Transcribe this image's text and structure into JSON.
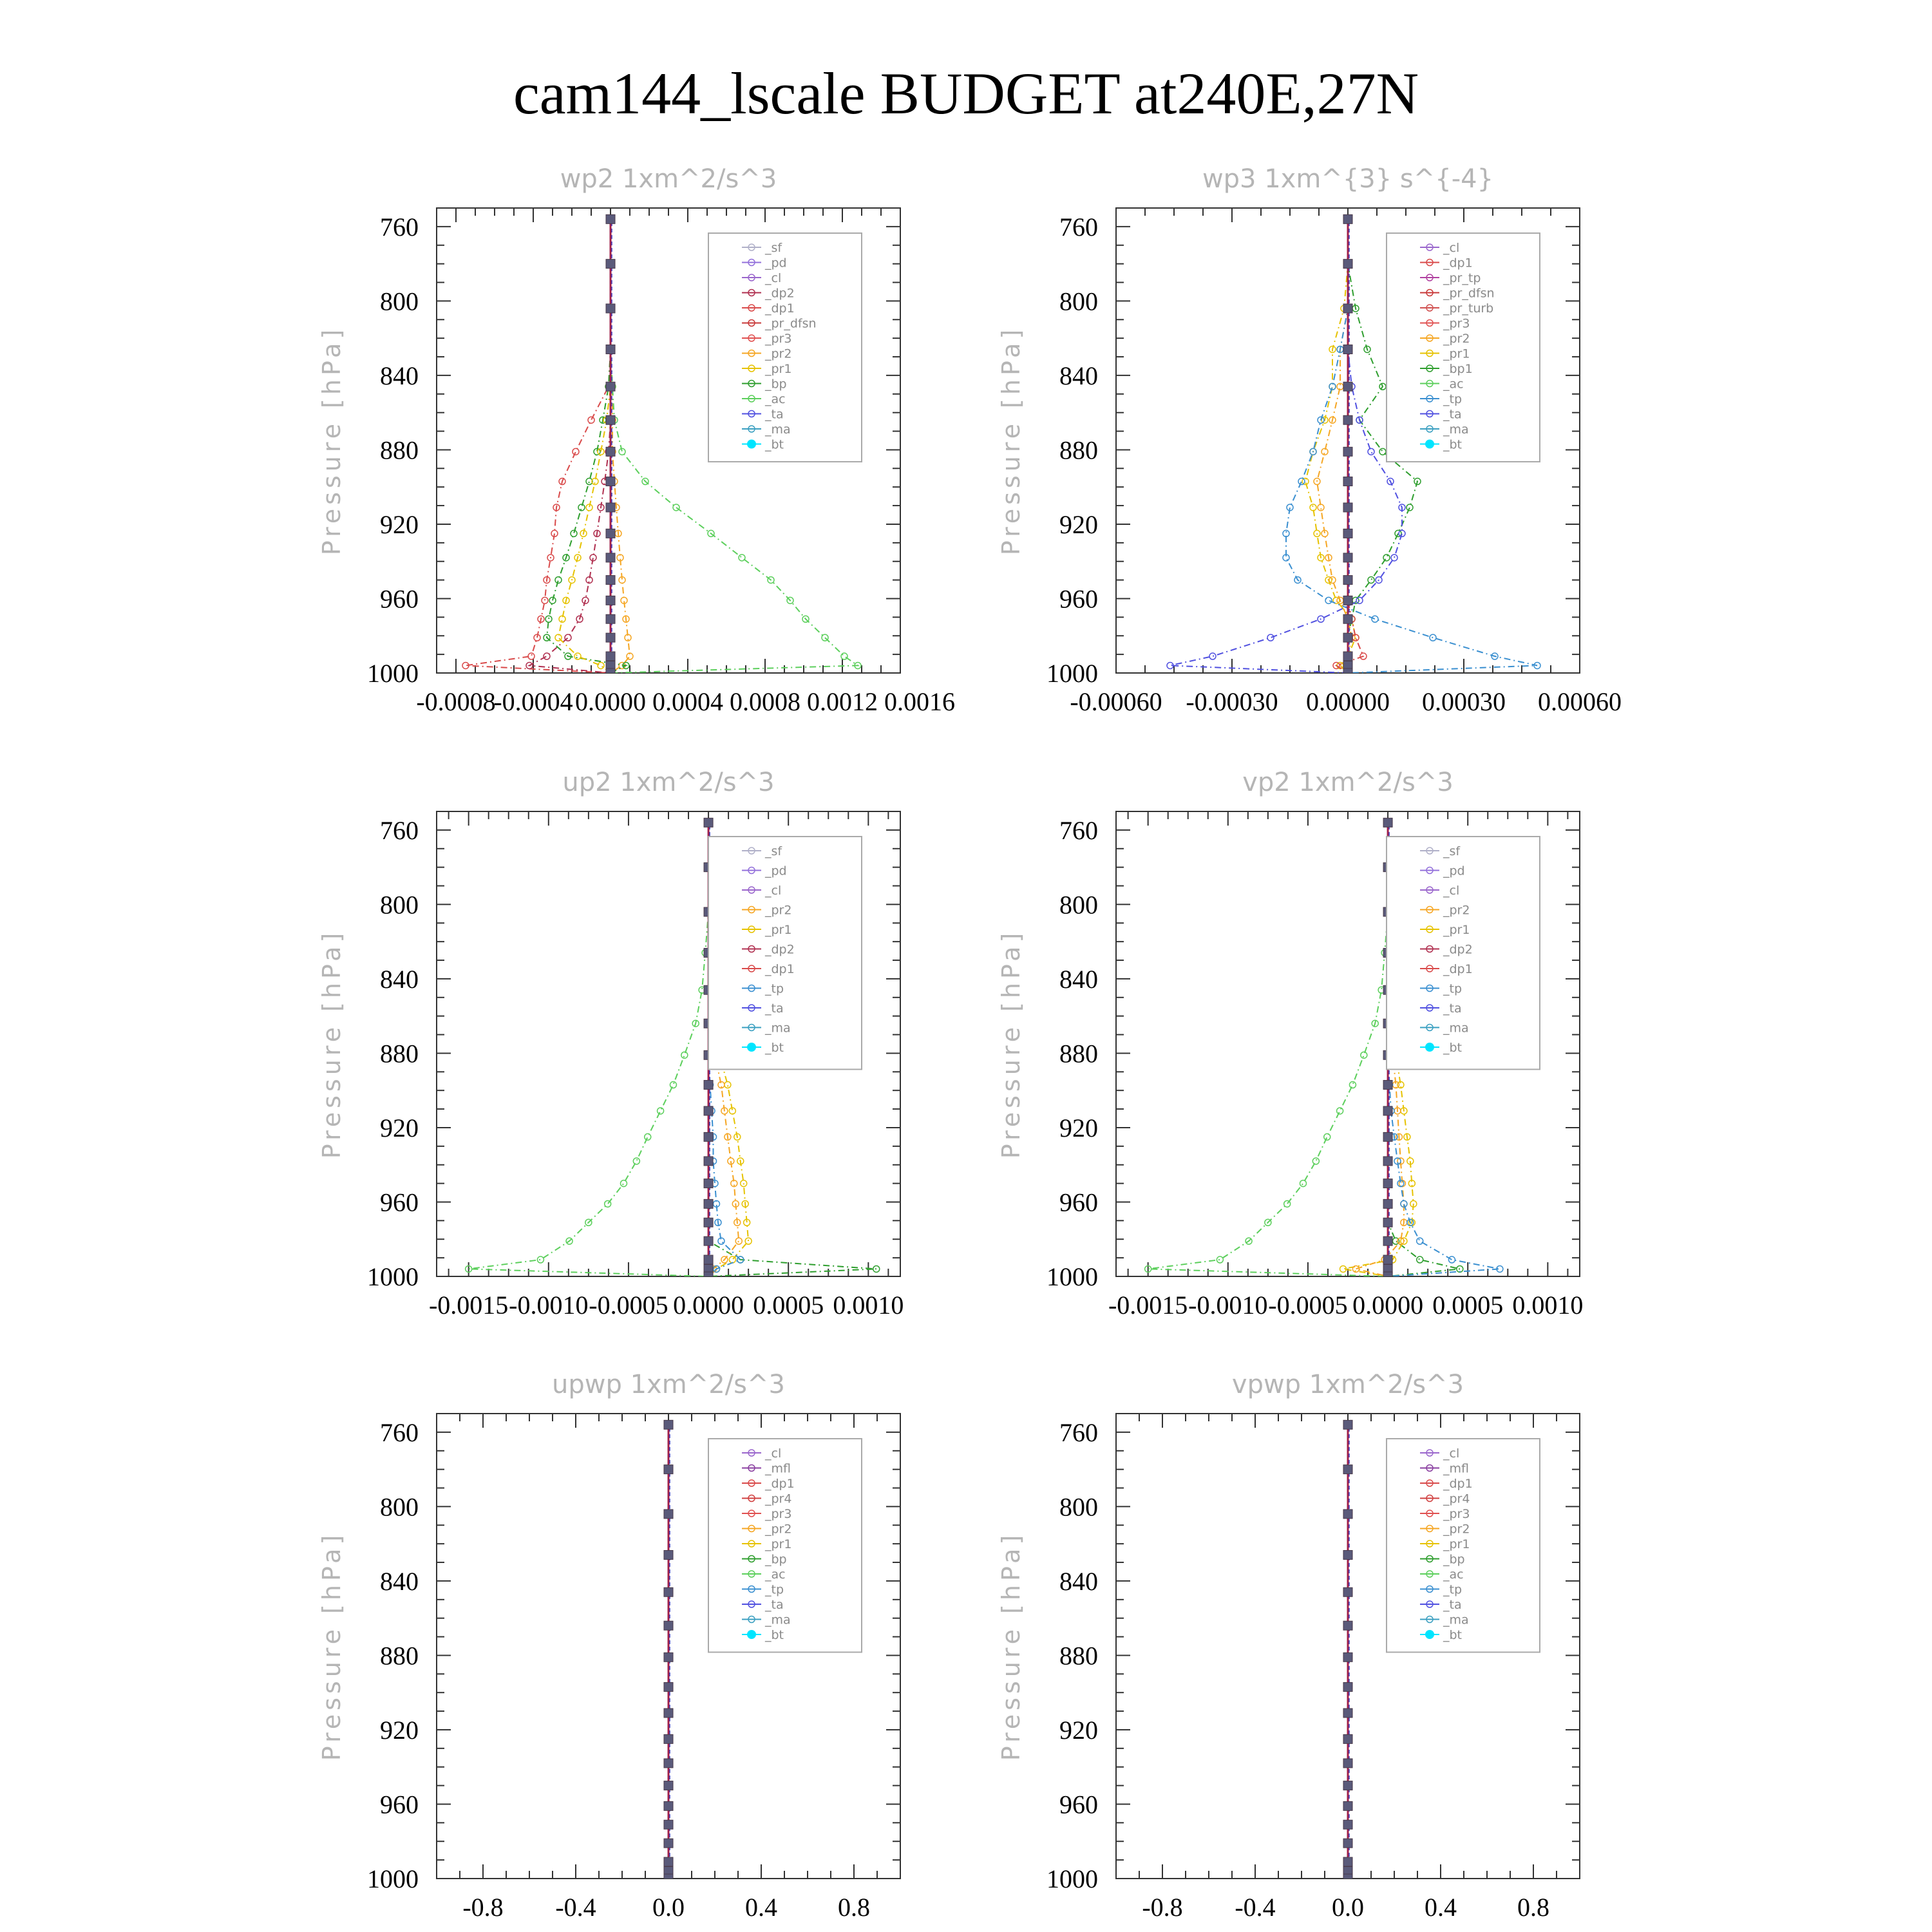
{
  "figure": {
    "title": "cam144_lscale  BUDGET at240E,27N"
  },
  "chart_data": [
    {
      "type": "line",
      "title": "wp2   1xm^2/s^3",
      "ylabel": "Pressure  [hPa]",
      "ylim": [
        1000,
        750
      ],
      "yticks": [
        760,
        800,
        840,
        880,
        920,
        960,
        1000
      ],
      "xlim": [
        -0.0009,
        0.0015
      ],
      "xticks": [
        -0.0008,
        -0.0004,
        0.0,
        0.0004,
        0.0008,
        0.0012,
        0.0016
      ],
      "xticklabels": [
        "-0.0008",
        "-0.0004",
        "0.0000",
        "0.0004",
        "0.0008",
        "0.0012",
        "0.0016"
      ],
      "levels": [
        756,
        780,
        804,
        826,
        846,
        864,
        881,
        897,
        911,
        925,
        938,
        950,
        961,
        971,
        981,
        991,
        996,
        1000
      ],
      "legend": [
        "_sf",
        "_pd",
        "_cl",
        "_dp2",
        "_dp1",
        "_pr_dfsn",
        "_pr3",
        "_pr2",
        "_pr1",
        "_bp",
        "_ac",
        "_ta",
        "_ma",
        "_bt"
      ],
      "series": [
        {
          "name": "_dp1",
          "color": "#d94a4a",
          "values": [
            0,
            0,
            0,
            0,
            -1e-05,
            -0.0001,
            -0.00018,
            -0.00025,
            -0.00028,
            -0.00029,
            -0.00031,
            -0.00033,
            -0.00034,
            -0.00036,
            -0.00038,
            -0.00041,
            -0.00075,
            0
          ]
        },
        {
          "name": "_dp2",
          "color": "#b03050",
          "values": [
            0,
            0,
            0,
            0,
            0,
            0,
            -1e-05,
            -3e-05,
            -5e-05,
            -7e-05,
            -9e-05,
            -0.00011,
            -0.00013,
            -0.00016,
            -0.00022,
            -0.00033,
            -0.00042,
            0
          ]
        },
        {
          "name": "_pr3",
          "color": "#f5a623",
          "values": [
            0,
            0,
            0,
            0,
            1e-05,
            1e-05,
            1e-05,
            2e-05,
            3e-05,
            4e-05,
            5e-05,
            6e-05,
            7e-05,
            8e-05,
            9e-05,
            0.0001,
            6e-05,
            0
          ]
        },
        {
          "name": "_pr1",
          "color": "#2e9e2e",
          "values": [
            0,
            0,
            0,
            0,
            -1e-05,
            -4e-05,
            -7e-05,
            -0.00011,
            -0.00015,
            -0.00019,
            -0.00023,
            -0.00027,
            -0.0003,
            -0.00032,
            -0.00033,
            -0.00022,
            8e-05,
            0
          ]
        },
        {
          "name": "_pr2",
          "color": "#e6c200",
          "values": [
            0,
            0,
            0,
            0,
            0,
            -2e-05,
            -5e-05,
            -8e-05,
            -0.00011,
            -0.00014,
            -0.00017,
            -0.0002,
            -0.00023,
            -0.00025,
            -0.00027,
            -0.00017,
            -5e-05,
            0
          ]
        },
        {
          "name": "_bp",
          "color": "#5ccf5c",
          "values": [
            0,
            0,
            0,
            0,
            1e-05,
            2e-05,
            6e-05,
            0.00018,
            0.00034,
            0.00052,
            0.00068,
            0.00083,
            0.00093,
            0.00101,
            0.00111,
            0.00121,
            0.00128,
            0
          ]
        },
        {
          "name": "_ta",
          "color": "#5050e0",
          "values": [
            0,
            0,
            0,
            0,
            0,
            0,
            0,
            0,
            0,
            0,
            0,
            0,
            0,
            0,
            0,
            0,
            0,
            0
          ]
        }
      ]
    },
    {
      "type": "line",
      "title": "wp3   1xm^{3} s^{-4}",
      "ylabel": "Pressure  [hPa]",
      "ylim": [
        1000,
        750
      ],
      "yticks": [
        760,
        800,
        840,
        880,
        920,
        960,
        1000
      ],
      "xlim": [
        -0.0006,
        0.0006
      ],
      "xticks": [
        -0.0006,
        -0.0003,
        0.0,
        0.0003,
        0.0006
      ],
      "xticklabels": [
        "-0.00060",
        "-0.00030",
        "0.00000",
        "0.00030",
        "0.00060"
      ],
      "levels": [
        756,
        780,
        804,
        826,
        846,
        864,
        881,
        897,
        911,
        925,
        938,
        950,
        961,
        971,
        981,
        991,
        996,
        1000
      ],
      "legend": [
        "_cl",
        "_dp1",
        "_pr_tp",
        "_pr_dfsn",
        "_pr_turb",
        "_pr3",
        "_pr2",
        "_pr1",
        "_bp1",
        "_ac",
        "_tp",
        "_ta",
        "_ma",
        "_bt"
      ],
      "series": [
        {
          "name": "_pr1",
          "color": "#e6c200",
          "values": [
            0,
            0,
            -1e-05,
            -4e-05,
            -4e-05,
            -6e-05,
            -9e-05,
            -0.00011,
            -9e-05,
            -8e-05,
            -7e-05,
            -5e-05,
            -3e-05,
            1e-05,
            2e-05,
            0,
            -2e-05,
            0
          ]
        },
        {
          "name": "_pr2",
          "color": "#f5a623",
          "values": [
            0,
            0,
            0,
            -2e-05,
            -2e-05,
            -4e-05,
            -6e-05,
            -8e-05,
            -7e-05,
            -6e-05,
            -5e-05,
            -4e-05,
            -2e-05,
            0,
            1e-05,
            0,
            -1e-05,
            0
          ]
        },
        {
          "name": "_bp1",
          "color": "#2e9e2e",
          "values": [
            0,
            0,
            2e-05,
            5e-05,
            9e-05,
            3e-05,
            9e-05,
            0.00018,
            0.00016,
            0.00013,
            0.0001,
            6e-05,
            2e-05,
            1e-05,
            0,
            0,
            0,
            0
          ]
        },
        {
          "name": "_tp",
          "color": "#3a8fd0",
          "values": [
            0,
            0,
            0,
            -2e-05,
            -4e-05,
            -7e-05,
            -9e-05,
            -0.00012,
            -0.00015,
            -0.00016,
            -0.00016,
            -0.00013,
            -5e-05,
            7e-05,
            0.00022,
            0.00038,
            0.00049,
            0
          ]
        },
        {
          "name": "_ta",
          "color": "#5050e0",
          "values": [
            0,
            0,
            0,
            0,
            1e-05,
            3e-05,
            6e-05,
            0.00011,
            0.00014,
            0.00014,
            0.00012,
            8e-05,
            3e-05,
            -7e-05,
            -0.0002,
            -0.00035,
            -0.00046,
            0
          ]
        },
        {
          "name": "_dp1",
          "color": "#d94a4a",
          "values": [
            0,
            0,
            0,
            0,
            0,
            0,
            0,
            0,
            0,
            0,
            0,
            0,
            0,
            1e-05,
            2e-05,
            4e-05,
            -3e-05,
            0
          ]
        }
      ]
    },
    {
      "type": "line",
      "title": "up2   1xm^2/s^3",
      "ylabel": "Pressure  [hPa]",
      "ylim": [
        1000,
        750
      ],
      "yticks": [
        760,
        800,
        840,
        880,
        920,
        960,
        1000
      ],
      "xlim": [
        -0.0017,
        0.0012
      ],
      "xticks": [
        -0.0015,
        -0.001,
        -0.0005,
        0.0,
        0.0005,
        0.001
      ],
      "xticklabels": [
        "-0.0015",
        "-0.0010",
        "-0.0005",
        "0.0000",
        "0.0005",
        "0.0010"
      ],
      "levels": [
        756,
        780,
        804,
        826,
        846,
        864,
        881,
        897,
        911,
        925,
        938,
        950,
        961,
        971,
        981,
        991,
        996,
        1000
      ],
      "legend": [
        "_sf",
        "_pd",
        "_cl",
        "_pr2",
        "_pr1",
        "_dp2",
        "_dp1",
        "_tp",
        "_ta",
        "_ma",
        "_bt"
      ],
      "series": [
        {
          "name": "_dp1",
          "color": "#5ccf5c",
          "values": [
            0,
            0,
            0,
            -2e-05,
            -4e-05,
            -8e-05,
            -0.00015,
            -0.00022,
            -0.0003,
            -0.00038,
            -0.00045,
            -0.00053,
            -0.00063,
            -0.00075,
            -0.00087,
            -0.00105,
            -0.0015,
            0
          ]
        },
        {
          "name": "_dp2",
          "color": "#2e9e2e",
          "values": [
            0,
            0,
            0,
            0,
            0,
            0,
            0,
            0,
            0,
            0,
            0,
            0,
            0,
            0,
            0,
            0.0002,
            0.00105,
            0
          ]
        },
        {
          "name": "_pr1",
          "color": "#e6c200",
          "values": [
            0,
            0,
            0,
            0,
            1e-05,
            3e-05,
            7e-05,
            0.00012,
            0.00015,
            0.00018,
            0.0002,
            0.00022,
            0.00023,
            0.00024,
            0.00025,
            0.00015,
            5e-05,
            0
          ]
        },
        {
          "name": "_pr2",
          "color": "#f5a623",
          "values": [
            0,
            0,
            0,
            0,
            1e-05,
            2e-05,
            4e-05,
            8e-05,
            0.0001,
            0.00012,
            0.00014,
            0.00016,
            0.00017,
            0.00018,
            0.00019,
            0.0001,
            3e-05,
            0
          ]
        },
        {
          "name": "_tp",
          "color": "#3a8fd0",
          "values": [
            0,
            0,
            0,
            0,
            0,
            0,
            0,
            1e-05,
            2e-05,
            3e-05,
            3e-05,
            4e-05,
            5e-05,
            6e-05,
            8e-05,
            0.0002,
            5e-05,
            0
          ]
        }
      ]
    },
    {
      "type": "line",
      "title": "vp2   1xm^2/s^3",
      "ylabel": "Pressure  [hPa]",
      "ylim": [
        1000,
        750
      ],
      "yticks": [
        760,
        800,
        840,
        880,
        920,
        960,
        1000
      ],
      "xlim": [
        -0.0017,
        0.0012
      ],
      "xticks": [
        -0.0015,
        -0.001,
        -0.0005,
        0.0,
        0.0005,
        0.001
      ],
      "xticklabels": [
        "-0.0015",
        "-0.0010",
        "-0.0005",
        "0.0000",
        "0.0005",
        "0.0010"
      ],
      "levels": [
        756,
        780,
        804,
        826,
        846,
        864,
        881,
        897,
        911,
        925,
        938,
        950,
        961,
        971,
        981,
        991,
        996,
        1000
      ],
      "legend": [
        "_sf",
        "_pd",
        "_cl",
        "_pr2",
        "_pr1",
        "_dp2",
        "_dp1",
        "_tp",
        "_ta",
        "_ma",
        "_bt"
      ],
      "series": [
        {
          "name": "_dp1",
          "color": "#5ccf5c",
          "values": [
            0,
            0,
            0,
            -2e-05,
            -4e-05,
            -8e-05,
            -0.00015,
            -0.00022,
            -0.0003,
            -0.00038,
            -0.00045,
            -0.00053,
            -0.00063,
            -0.00075,
            -0.00087,
            -0.00105,
            -0.0015,
            0
          ]
        },
        {
          "name": "_dp2",
          "color": "#2e9e2e",
          "values": [
            0,
            0,
            0,
            0,
            0,
            0,
            0,
            0,
            0,
            0,
            0,
            0,
            0,
            0,
            5e-05,
            0.0002,
            0.00045,
            0
          ]
        },
        {
          "name": "_pr1",
          "color": "#e6c200",
          "values": [
            0,
            0,
            0,
            0,
            1e-05,
            2e-05,
            5e-05,
            8e-05,
            0.0001,
            0.00012,
            0.00014,
            0.00015,
            0.00016,
            0.00015,
            0.0001,
            3e-05,
            -0.00028,
            0
          ]
        },
        {
          "name": "_pr2",
          "color": "#f5a623",
          "values": [
            0,
            0,
            0,
            0,
            0,
            1e-05,
            3e-05,
            5e-05,
            6e-05,
            7e-05,
            8e-05,
            9e-05,
            0.0001,
            0.0001,
            8e-05,
            -2e-05,
            -0.0002,
            0
          ]
        },
        {
          "name": "_tp",
          "color": "#3a8fd0",
          "values": [
            0,
            0,
            0,
            0,
            0,
            0,
            0,
            1e-05,
            2e-05,
            4e-05,
            6e-05,
            8e-05,
            0.0001,
            0.00014,
            0.0002,
            0.0004,
            0.0007,
            0
          ]
        }
      ]
    },
    {
      "type": "line",
      "title": "upwp   1xm^2/s^3",
      "ylabel": "Pressure  [hPa]",
      "ylim": [
        1000,
        750
      ],
      "yticks": [
        760,
        800,
        840,
        880,
        920,
        960,
        1000
      ],
      "xlim": [
        -1.0,
        1.0
      ],
      "xticks": [
        -0.8,
        -0.4,
        0.0,
        0.4,
        0.8
      ],
      "xticklabels": [
        "-0.8",
        "-0.4",
        "0.0",
        "0.4",
        "0.8"
      ],
      "levels": [
        756,
        780,
        804,
        826,
        846,
        864,
        881,
        897,
        911,
        925,
        938,
        950,
        961,
        971,
        981,
        991,
        996,
        1000
      ],
      "legend": [
        "_cl",
        "_mfl",
        "_dp1",
        "_pr4",
        "_pr3",
        "_pr2",
        "_pr1",
        "_bp",
        "_ac",
        "_tp",
        "_ta",
        "_ma",
        "_bt"
      ],
      "series": [
        {
          "name": "_dp1",
          "color": "#b03050",
          "values": [
            0,
            0,
            0,
            0,
            0,
            0,
            0,
            0,
            0,
            0,
            0,
            0,
            0,
            0,
            0,
            0,
            0,
            0
          ]
        }
      ]
    },
    {
      "type": "line",
      "title": "vpwp   1xm^2/s^3",
      "ylabel": "Pressure  [hPa]",
      "ylim": [
        1000,
        750
      ],
      "yticks": [
        760,
        800,
        840,
        880,
        920,
        960,
        1000
      ],
      "xlim": [
        -1.0,
        1.0
      ],
      "xticks": [
        -0.8,
        -0.4,
        0.0,
        0.4,
        0.8
      ],
      "xticklabels": [
        "-0.8",
        "-0.4",
        "0.0",
        "0.4",
        "0.8"
      ],
      "levels": [
        756,
        780,
        804,
        826,
        846,
        864,
        881,
        897,
        911,
        925,
        938,
        950,
        961,
        971,
        981,
        991,
        996,
        1000
      ],
      "legend": [
        "_cl",
        "_mfl",
        "_dp1",
        "_pr4",
        "_pr3",
        "_pr2",
        "_pr1",
        "_bp",
        "_ac",
        "_tp",
        "_ta",
        "_ma",
        "_bt"
      ],
      "series": [
        {
          "name": "_dp1",
          "color": "#b03050",
          "values": [
            0,
            0,
            0,
            0,
            0,
            0,
            0,
            0,
            0,
            0,
            0,
            0,
            0,
            0,
            0,
            0,
            0,
            0
          ]
        }
      ]
    }
  ],
  "legend_colors": {
    "_sf": "#b0b0c8",
    "_pd": "#9370db",
    "_cl": "#9a66cc",
    "_mfl": "#8a3fa0",
    "_dp2": "#b03050",
    "_dp1": "#d94a4a",
    "_pr_tp": "#b040a0",
    "_pr_dfsn": "#c83838",
    "_pr_turb": "#d05050",
    "_pr4": "#d04040",
    "_pr3": "#e05050",
    "_pr2": "#f5a623",
    "_pr1": "#e6c200",
    "_bp": "#2e9e2e",
    "_bp1": "#2e9e2e",
    "_ac": "#5ccf5c",
    "_tp": "#3a8fd0",
    "_ta": "#5050e0",
    "_ma": "#3a9fc0",
    "_bt": "#00e5ff"
  }
}
